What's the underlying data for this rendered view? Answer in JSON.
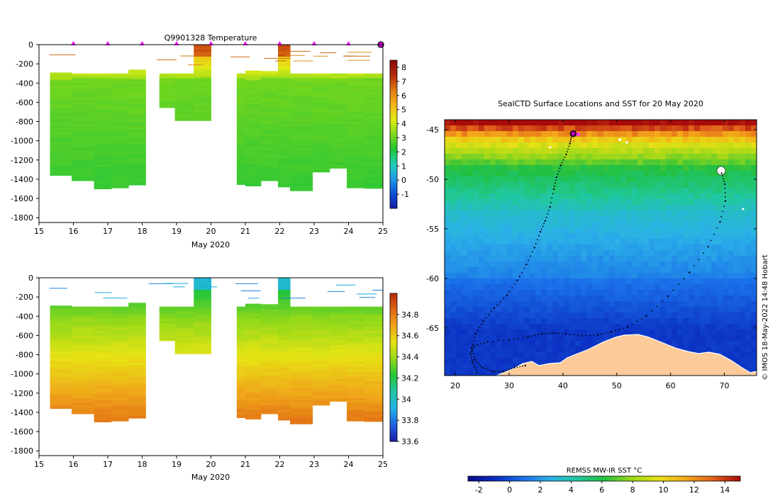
{
  "chart_data": [
    {
      "type": "heatmap",
      "name": "temperature-section",
      "title": "Q9901328  Temperature",
      "xlabel": "May 2020",
      "ylabel": "",
      "x_ticks": [
        15,
        16,
        17,
        18,
        19,
        20,
        21,
        22,
        23,
        24,
        25
      ],
      "y_ticks": [
        0,
        -200,
        -400,
        -600,
        -800,
        -1000,
        -1200,
        -1400,
        -1600,
        -1800
      ],
      "xlim": [
        15,
        25
      ],
      "ylim": [
        -1850,
        0
      ],
      "colorbar_ticks": [
        -1,
        0,
        1,
        2,
        3,
        4,
        5,
        6,
        7,
        8
      ],
      "colorbar_range": [
        -2,
        8.5
      ],
      "colorbar_stops": [
        "#1a1aa6",
        "#0a4fd6",
        "#1f9be8",
        "#1fd0b8",
        "#22c53a",
        "#7fd81a",
        "#e2ea14",
        "#f4b41a",
        "#e07a14",
        "#b52a0a",
        "#8a0a0a"
      ],
      "surface_markers_x": [
        16,
        17,
        18,
        19,
        20,
        21,
        22,
        23,
        24
      ],
      "profiles": [
        {
          "x0": 15.32,
          "x1": 15.95,
          "top": -290,
          "bottom": -1360
        },
        {
          "x0": 15.95,
          "x1": 16.6,
          "top": -300,
          "bottom": -1415
        },
        {
          "x0": 16.6,
          "x1": 17.1,
          "top": -300,
          "bottom": -1500
        },
        {
          "x0": 17.1,
          "x1": 17.6,
          "top": -300,
          "bottom": -1490
        },
        {
          "x0": 17.6,
          "x1": 18.1,
          "top": -260,
          "bottom": -1460
        },
        {
          "x0": 18.5,
          "x1": 18.95,
          "top": -300,
          "bottom": -655
        },
        {
          "x0": 18.95,
          "x1": 19.5,
          "top": -300,
          "bottom": -790
        },
        {
          "x0": 19.5,
          "x1": 20.0,
          "top": 0,
          "bottom": -790
        },
        {
          "x0": 20.75,
          "x1": 21.0,
          "top": -300,
          "bottom": -1455
        },
        {
          "x0": 21.0,
          "x1": 21.45,
          "top": -270,
          "bottom": -1470
        },
        {
          "x0": 21.45,
          "x1": 21.95,
          "top": -275,
          "bottom": -1415
        },
        {
          "x0": 21.95,
          "x1": 22.3,
          "top": 0,
          "bottom": -1480
        },
        {
          "x0": 22.3,
          "x1": 22.95,
          "top": -300,
          "bottom": -1520
        },
        {
          "x0": 22.95,
          "x1": 23.45,
          "top": -300,
          "bottom": -1325
        },
        {
          "x0": 23.45,
          "x1": 23.95,
          "top": -300,
          "bottom": -1285
        },
        {
          "x0": 23.95,
          "x1": 24.45,
          "top": -300,
          "bottom": -1490
        },
        {
          "x0": 24.45,
          "x1": 25.0,
          "top": -300,
          "bottom": -1495
        }
      ],
      "surface_values": [
        3.8,
        3.6,
        3.2
      ],
      "deep_value": 2.3
    },
    {
      "type": "heatmap",
      "name": "salinity-section",
      "title": "",
      "xlabel": "May 2020",
      "x_ticks": [
        15,
        16,
        17,
        18,
        19,
        20,
        21,
        22,
        23,
        24,
        25
      ],
      "y_ticks": [
        0,
        -200,
        -400,
        -600,
        -800,
        -1000,
        -1200,
        -1400,
        -1600,
        -1800
      ],
      "xlim": [
        15,
        25
      ],
      "ylim": [
        -1850,
        0
      ],
      "colorbar_ticks": [
        "33.6",
        "33.8",
        "34",
        "34.2",
        "34.4",
        "34.6",
        "34.8"
      ],
      "colorbar_range": [
        33.6,
        35.0
      ],
      "colorbar_stops": [
        "#1a1aa6",
        "#1f5fe0",
        "#1fb0e8",
        "#20c5a8",
        "#22c53a",
        "#8fd81a",
        "#e6e414",
        "#f0a81a",
        "#e06a14",
        "#b82a0a"
      ],
      "surface_value": 33.95,
      "deep_value": 34.72
    },
    {
      "type": "map",
      "name": "sst-map",
      "title": "SealCTD Surface Locations and SST for 20 May 2020",
      "x_ticks": [
        20,
        30,
        40,
        50,
        60,
        70
      ],
      "y_ticks": [
        -45,
        -50,
        -55,
        -60,
        -65
      ],
      "lon_range": [
        18,
        76
      ],
      "lat_range": [
        -69.8,
        -44.0
      ],
      "colorbar_label": "REMSS MW-IR SST °C",
      "colorbar_ticks": [
        -2,
        0,
        2,
        4,
        6,
        8,
        10,
        12,
        14
      ],
      "colorbar_range": [
        -2.7,
        15.0
      ],
      "colorbar_stops": [
        "#0a0a8a",
        "#0a2bc0",
        "#1a6fe8",
        "#2bb0e8",
        "#20c8a0",
        "#22c040",
        "#9cd81a",
        "#e8e014",
        "#f4a81a",
        "#e0601a",
        "#a80a0a"
      ],
      "land_color": "#fdcb9a",
      "credit": "© IMOS 18-May-2022 14:48 Hobart",
      "track": [
        [
          24.0,
          -69.5
        ],
        [
          23.2,
          -68.5
        ],
        [
          22.8,
          -67.6
        ],
        [
          23.5,
          -66.8
        ],
        [
          26.0,
          -66.4
        ],
        [
          30.0,
          -66.2
        ],
        [
          33.5,
          -65.9
        ],
        [
          36.0,
          -65.6
        ],
        [
          38.0,
          -65.5
        ],
        [
          40.5,
          -65.6
        ],
        [
          43.5,
          -65.8
        ],
        [
          46.5,
          -65.7
        ],
        [
          49.0,
          -65.4
        ],
        [
          52.0,
          -64.9
        ],
        [
          55.5,
          -63.8
        ],
        [
          59.5,
          -61.8
        ],
        [
          63.5,
          -59.4
        ],
        [
          67.0,
          -56.8
        ],
        [
          69.2,
          -54.3
        ],
        [
          70.2,
          -52.2
        ],
        [
          70.1,
          -50.5
        ],
        [
          69.5,
          -49.4
        ],
        [
          41.6,
          -45.6
        ],
        [
          41.3,
          -46.4
        ],
        [
          40.6,
          -47.5
        ],
        [
          39.6,
          -48.6
        ],
        [
          38.8,
          -49.8
        ],
        [
          38.3,
          -51.0
        ],
        [
          37.6,
          -52.8
        ],
        [
          36.7,
          -54.2
        ],
        [
          35.8,
          -55.3
        ],
        [
          34.7,
          -56.9
        ],
        [
          33.2,
          -58.6
        ],
        [
          31.5,
          -60.2
        ],
        [
          29.6,
          -61.7
        ],
        [
          27.2,
          -63.0
        ],
        [
          25.2,
          -64.3
        ],
        [
          23.8,
          -65.6
        ],
        [
          23.0,
          -67.0
        ],
        [
          23.6,
          -68.2
        ],
        [
          25.0,
          -69.0
        ],
        [
          27.0,
          -69.4
        ],
        [
          29.0,
          -69.4
        ],
        [
          31.0,
          -69.0
        ],
        [
          33.0,
          -68.8
        ]
      ],
      "current_position": [
        41.9,
        -45.4
      ]
    }
  ]
}
